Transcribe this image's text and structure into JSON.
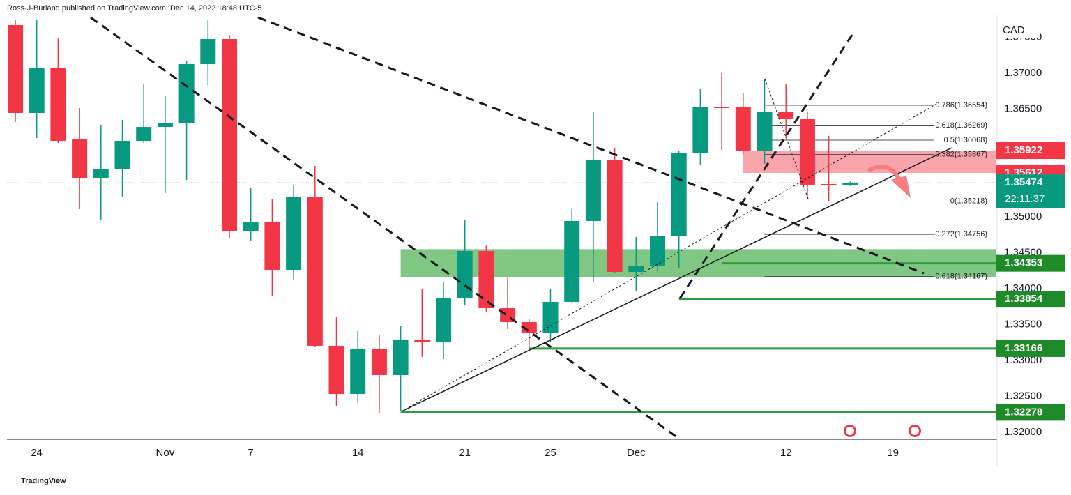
{
  "header": "Ross-J-Burland published on TradingView.com, Dec 14, 2022 18:48 UTC-5",
  "footer": "TradingView",
  "chart_data": {
    "type": "candlestick",
    "currency": "CAD",
    "categories": [
      null,
      "24",
      null,
      null,
      null,
      null,
      null,
      "Nov",
      null,
      null,
      null,
      "7",
      null,
      null,
      null,
      null,
      "14",
      null,
      null,
      null,
      null,
      "21",
      null,
      null,
      null,
      "25",
      null,
      null,
      null,
      "Dec",
      null,
      null,
      null,
      null,
      null,
      null,
      "12",
      null,
      null,
      null,
      null,
      "19"
    ],
    "open": [
      1.3767,
      1.36447,
      1.37068,
      1.36078,
      1.35544,
      1.3567,
      1.36058,
      1.36252,
      1.36301,
      1.37126,
      1.37476,
      1.34806,
      1.34932,
      1.34262,
      1.35272,
      1.33204,
      1.32534,
      1.33165,
      1.32796,
      1.33282,
      1.33252,
      1.33874,
      1.34524,
      1.33728,
      1.33534,
      1.33379,
      1.33816,
      1.34942,
      1.35796,
      1.34233,
      1.34311,
      1.34738,
      1.35893,
      1.36534,
      1.36534,
      1.35922,
      1.36466,
      1.36369,
      1.35457,
      1.35447,
      null,
      null
    ],
    "high": [
      1.37748,
      1.37748,
      1.37485,
      1.36515,
      1.36272,
      1.3635,
      1.36854,
      1.3668,
      1.37165,
      1.37748,
      1.37534,
      1.35398,
      1.35252,
      1.35447,
      1.35709,
      1.33602,
      1.33408,
      1.3336,
      1.33476,
      1.3399,
      1.34087,
      1.34951,
      1.346,
      1.34155,
      1.33573,
      1.3399,
      1.35107,
      1.36466,
      1.35961,
      1.34718,
      1.35204,
      1.35922,
      1.36777,
      1.3701,
      1.36728,
      1.36922,
      1.36854,
      1.36466,
      1.36126,
      1.3549,
      null,
      null
    ],
    "low": [
      1.3632,
      1.36097,
      1.36029,
      1.35107,
      1.34961,
      1.35272,
      1.36029,
      1.3533,
      1.35515,
      1.36835,
      1.34699,
      1.3467,
      1.33893,
      1.34117,
      1.33194,
      1.32369,
      1.32408,
      1.32272,
      1.32291,
      1.33049,
      1.33019,
      1.33777,
      1.3367,
      1.33437,
      1.33194,
      1.33262,
      1.33796,
      1.34087,
      1.34214,
      1.33961,
      1.34252,
      1.34282,
      1.35728,
      1.35932,
      1.35883,
      1.35738,
      1.36097,
      1.35252,
      1.35223,
      1.3543,
      null,
      null
    ],
    "close": [
      1.36447,
      1.37068,
      1.36058,
      1.35544,
      1.3567,
      1.36058,
      1.36252,
      1.3631,
      1.37126,
      1.37476,
      1.34806,
      1.34932,
      1.34262,
      1.35272,
      1.33204,
      1.32534,
      1.33165,
      1.32796,
      1.33282,
      1.33252,
      1.33874,
      1.34524,
      1.33728,
      1.33534,
      1.33379,
      1.33816,
      1.34942,
      1.35796,
      1.34233,
      1.34311,
      1.34738,
      1.35893,
      1.36534,
      1.36515,
      1.35922,
      1.36466,
      1.36369,
      1.35447,
      1.35437,
      1.35474,
      null,
      null
    ],
    "up_color": "#089981",
    "down_color": "#f23645",
    "ylim": [
      1.31903,
      1.37806
    ],
    "yticks": [
      {
        "value": 1.32,
        "label": "1.32000"
      },
      {
        "value": 1.325,
        "label": "1.32500"
      },
      {
        "value": 1.33,
        "label": "1.33000"
      },
      {
        "value": 1.335,
        "label": "1.33500"
      },
      {
        "value": 1.34,
        "label": "1.34000"
      },
      {
        "value": 1.345,
        "label": "1.34500"
      },
      {
        "value": 1.35,
        "label": "1.35000"
      },
      {
        "value": 1.365,
        "label": "1.36500"
      },
      {
        "value": 1.37,
        "label": "1.37000"
      },
      {
        "value": 1.375,
        "label": "1.37500"
      }
    ],
    "last_price": 1.35474,
    "countdown": "22:11:37",
    "resistance_tags": [
      1.35922,
      1.35612
    ],
    "support_levels": [
      1.34353,
      1.33854,
      1.33166,
      1.32278
    ],
    "support_zone": [
      1.3416,
      1.3455
    ],
    "fib_levels": [
      {
        "value": 1.36554,
        "label": "0.786(1.36554)"
      },
      {
        "value": 1.36269,
        "label": "0.618(1.36269)"
      },
      {
        "value": 1.36068,
        "label": "0.5(1.36068)"
      },
      {
        "value": 1.35867,
        "label": "0.382(1.35867)"
      },
      {
        "value": 1.35218,
        "label": "0(1.35218)"
      },
      {
        "value": 1.34756,
        "label": "-0.272(1.34756)"
      },
      {
        "value": 1.34167,
        "label": "0.618(1.34167)"
      }
    ]
  }
}
